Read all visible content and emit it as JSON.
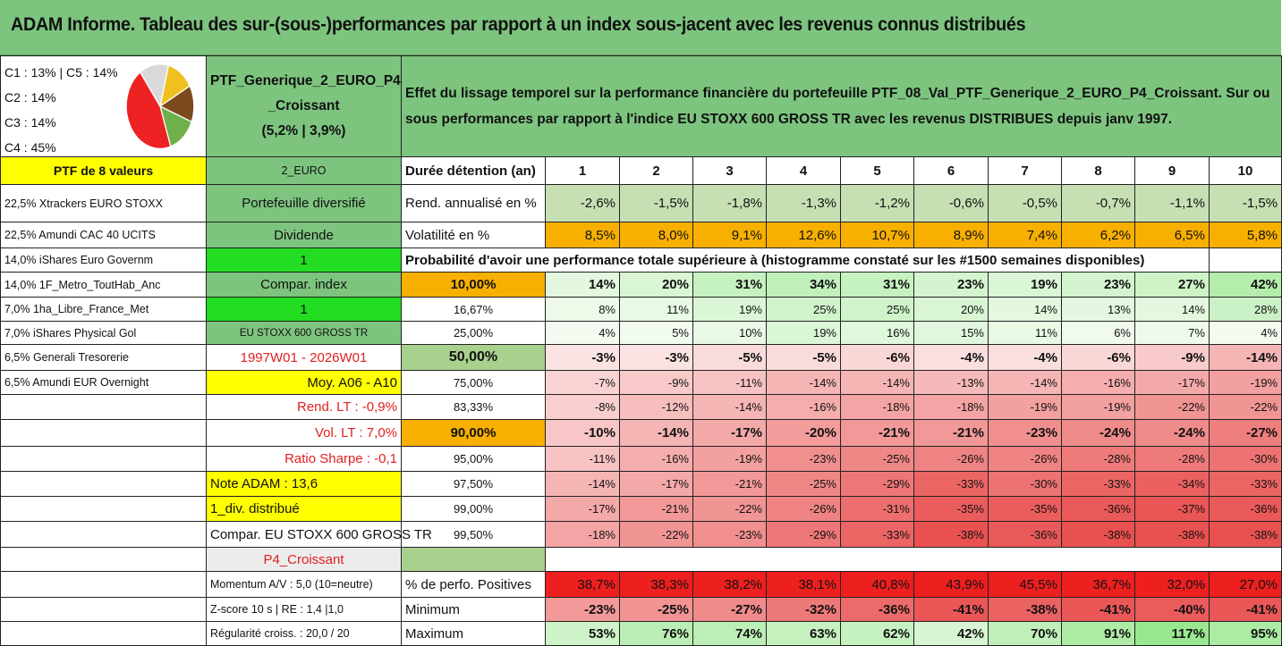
{
  "title": "ADAM Informe. Tableau des sur-(sous-)performances par rapport à un index sous-jacent avec les revenus connus distribués",
  "pie": {
    "labels": [
      "C1 : 13% | C5 : 14%",
      "C2 : 14%",
      "C3 : 14%",
      "C4 : 45%"
    ],
    "colors": [
      "#f0c020",
      "#7b4a1e",
      "#6fb04a",
      "#ee2222",
      "#d9d9d9"
    ]
  },
  "portfolio": {
    "name_line1": "PTF_Generique_2_EURO_P4",
    "name_line2": "_Croissant",
    "name_line3": "(5,2% | 3,9%)",
    "description": "Effet du lissage temporel sur la performance financière du portefeuille PTF_08_Val_PTF_Generique_2_EURO_P4_Croissant. Sur ou sous performances par rapport à l'indice EU STOXX 600 GROSS TR avec les revenus DISTRIBUES depuis janv 1997.",
    "count_label": "PTF de 8 valeurs",
    "currency_label": "2_EURO"
  },
  "holdings": [
    "22,5% Xtrackers EURO STOXX",
    "22,5% Amundi CAC 40 UCITS",
    "14,0% iShares Euro Governm",
    "14,0% 1F_Metro_ToutHab_Anc",
    "7,0% 1ha_Libre_France_Met",
    "7,0% iShares Physical Gol",
    "6,5% Generali Tresorerie",
    "6,5% Amundi EUR Overnight"
  ],
  "info": {
    "diversified": "Portefeuille diversifié",
    "dividend_label": "Dividende",
    "dividend_value": "1",
    "compar_index_label": "Compar. index",
    "compar_index_value": "1",
    "index_name": "EU STOXX 600 GROSS TR",
    "period": "1997W01 - 2026W01",
    "moy": "Moy. A06 - A10",
    "rend_lt": "Rend. LT : -0,9%",
    "vol_lt": "Vol. LT : 7,0%",
    "sharpe": "Ratio Sharpe : -0,1",
    "note_adam": "Note ADAM : 13,6",
    "div_distrib": "1_div. distribué",
    "compar_full": "Compar. EU STOXX 600 GROSS TR",
    "profile": "P4_Croissant",
    "momentum": "Momentum A/V : 5,0 (10=neutre)",
    "zscore": "Z-score 10 s | RE : 1,4 |1,0",
    "regularite": "Régularité croiss. : 20,0 / 20"
  },
  "duration_label": "Durée détention (an)",
  "years": [
    "1",
    "2",
    "3",
    "4",
    "5",
    "6",
    "7",
    "8",
    "9",
    "10"
  ],
  "rend_label": "Rend. annualisé en %",
  "rend": [
    "-2,6%",
    "-1,5%",
    "-1,8%",
    "-1,3%",
    "-1,2%",
    "-0,6%",
    "-0,5%",
    "-0,7%",
    "-1,1%",
    "-1,5%"
  ],
  "vol_label": "Volatilité en %",
  "vol": [
    "8,5%",
    "8,0%",
    "9,1%",
    "12,6%",
    "10,7%",
    "8,9%",
    "7,4%",
    "6,2%",
    "6,5%",
    "5,8%"
  ],
  "prob_label": "Probabilité d'avoir une performance totale supérieure à (histogramme constaté sur les #1500 semaines disponibles)",
  "prob_rows": [
    {
      "p": "10,00%",
      "v": [
        "14%",
        "20%",
        "31%",
        "34%",
        "31%",
        "23%",
        "19%",
        "23%",
        "27%",
        "42%"
      ]
    },
    {
      "p": "16,67%",
      "v": [
        "8%",
        "11%",
        "19%",
        "25%",
        "25%",
        "20%",
        "14%",
        "13%",
        "14%",
        "28%"
      ]
    },
    {
      "p": "25,00%",
      "v": [
        "4%",
        "5%",
        "10%",
        "19%",
        "16%",
        "15%",
        "11%",
        "6%",
        "7%",
        "4%"
      ]
    },
    {
      "p": "50,00%",
      "v": [
        "-3%",
        "-3%",
        "-5%",
        "-5%",
        "-6%",
        "-4%",
        "-4%",
        "-6%",
        "-9%",
        "-14%"
      ]
    },
    {
      "p": "75,00%",
      "v": [
        "-7%",
        "-9%",
        "-11%",
        "-14%",
        "-14%",
        "-13%",
        "-14%",
        "-16%",
        "-17%",
        "-19%"
      ]
    },
    {
      "p": "83,33%",
      "v": [
        "-8%",
        "-12%",
        "-14%",
        "-16%",
        "-18%",
        "-18%",
        "-19%",
        "-19%",
        "-22%",
        "-22%"
      ]
    },
    {
      "p": "90,00%",
      "v": [
        "-10%",
        "-14%",
        "-17%",
        "-20%",
        "-21%",
        "-21%",
        "-23%",
        "-24%",
        "-24%",
        "-27%"
      ]
    },
    {
      "p": "95,00%",
      "v": [
        "-11%",
        "-16%",
        "-19%",
        "-23%",
        "-25%",
        "-26%",
        "-26%",
        "-28%",
        "-28%",
        "-30%"
      ]
    },
    {
      "p": "97,50%",
      "v": [
        "-14%",
        "-17%",
        "-21%",
        "-25%",
        "-29%",
        "-33%",
        "-30%",
        "-33%",
        "-34%",
        "-33%"
      ]
    },
    {
      "p": "99,00%",
      "v": [
        "-17%",
        "-21%",
        "-22%",
        "-26%",
        "-31%",
        "-35%",
        "-35%",
        "-36%",
        "-37%",
        "-36%"
      ]
    },
    {
      "p": "99,50%",
      "v": [
        "-18%",
        "-22%",
        "-23%",
        "-29%",
        "-33%",
        "-38%",
        "-36%",
        "-38%",
        "-38%",
        "-38%"
      ]
    }
  ],
  "pos_label": "% de perfo. Positives",
  "pos": [
    "38,7%",
    "38,3%",
    "38,2%",
    "38,1%",
    "40,8%",
    "43,9%",
    "45,5%",
    "36,7%",
    "32,0%",
    "27,0%"
  ],
  "min_label": "Minimum",
  "min": [
    "-23%",
    "-25%",
    "-27%",
    "-32%",
    "-36%",
    "-41%",
    "-38%",
    "-41%",
    "-40%",
    "-41%"
  ],
  "max_label": "Maximum",
  "max": [
    "53%",
    "76%",
    "74%",
    "63%",
    "62%",
    "42%",
    "70%",
    "91%",
    "117%",
    "95%"
  ]
}
